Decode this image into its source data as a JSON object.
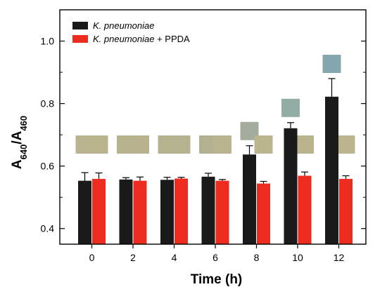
{
  "chart_data": {
    "type": "bar",
    "xlabel": "Time (h)",
    "ylabel_main": "A",
    "ylabel_sub1": "640",
    "ylabel_sep": "/A",
    "ylabel_sub2": "460",
    "categories": [
      "0",
      "2",
      "4",
      "6",
      "8",
      "10",
      "12"
    ],
    "ylim": [
      0.35,
      1.1
    ],
    "yticks": [
      0.4,
      0.6,
      0.8,
      1.0
    ],
    "ytick_labels": [
      "0.4",
      "0.6",
      "0.8",
      "1.0"
    ],
    "series": [
      {
        "name": "K. pneumoniae",
        "color": "#1a1a1a",
        "values": [
          0.553,
          0.557,
          0.556,
          0.566,
          0.637,
          0.721,
          0.822
        ],
        "errors": [
          0.026,
          0.006,
          0.008,
          0.011,
          0.028,
          0.018,
          0.058
        ]
      },
      {
        "name_italic": "K. pneumoniae",
        "name_suffix": " + PPDA",
        "color": "#ee2b1f",
        "values": [
          0.559,
          0.553,
          0.56,
          0.553,
          0.544,
          0.569,
          0.559
        ],
        "errors": [
          0.019,
          0.012,
          0.004,
          0.004,
          0.007,
          0.012,
          0.01
        ]
      }
    ],
    "color_swatches": {
      "note_free": true,
      "series1": [
        "#b9b38f",
        "#b7b28e",
        "#b5b290",
        "#b4b192",
        "#a4ad9d",
        "#92aca6",
        "#84a6ad"
      ],
      "series2": [
        "#bab48e",
        "#b8b38e",
        "#b6b28f",
        "#b9b38f",
        "#bab48f",
        "#b9b48e",
        "#bbb48e"
      ]
    },
    "grid": false,
    "legend_position": "top-left"
  }
}
